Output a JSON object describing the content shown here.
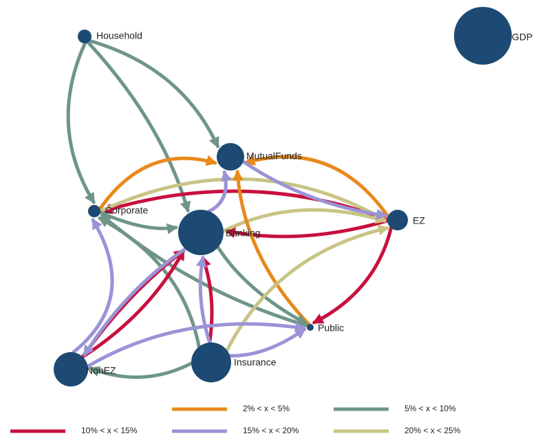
{
  "size_legend": {
    "label": "GDP"
  },
  "nodes": [
    {
      "label": "Household"
    },
    {
      "label": "MutualFunds"
    },
    {
      "label": "Corporate"
    },
    {
      "label": "Banking"
    },
    {
      "label": "EZ"
    },
    {
      "label": "Public"
    },
    {
      "label": "Insurance"
    },
    {
      "label": "NonEZ"
    }
  ],
  "legend": [
    {
      "label": "2% < x < 5%",
      "color": "#e8891c"
    },
    {
      "label": "5% < x < 10%",
      "color": "#6f958a"
    },
    {
      "label": "10% < x < 15%",
      "color": "#c8103e"
    },
    {
      "label": "15% < x < 20%",
      "color": "#9a93d6"
    },
    {
      "label": "20% < x < 25%",
      "color": "#c9c486"
    }
  ]
}
